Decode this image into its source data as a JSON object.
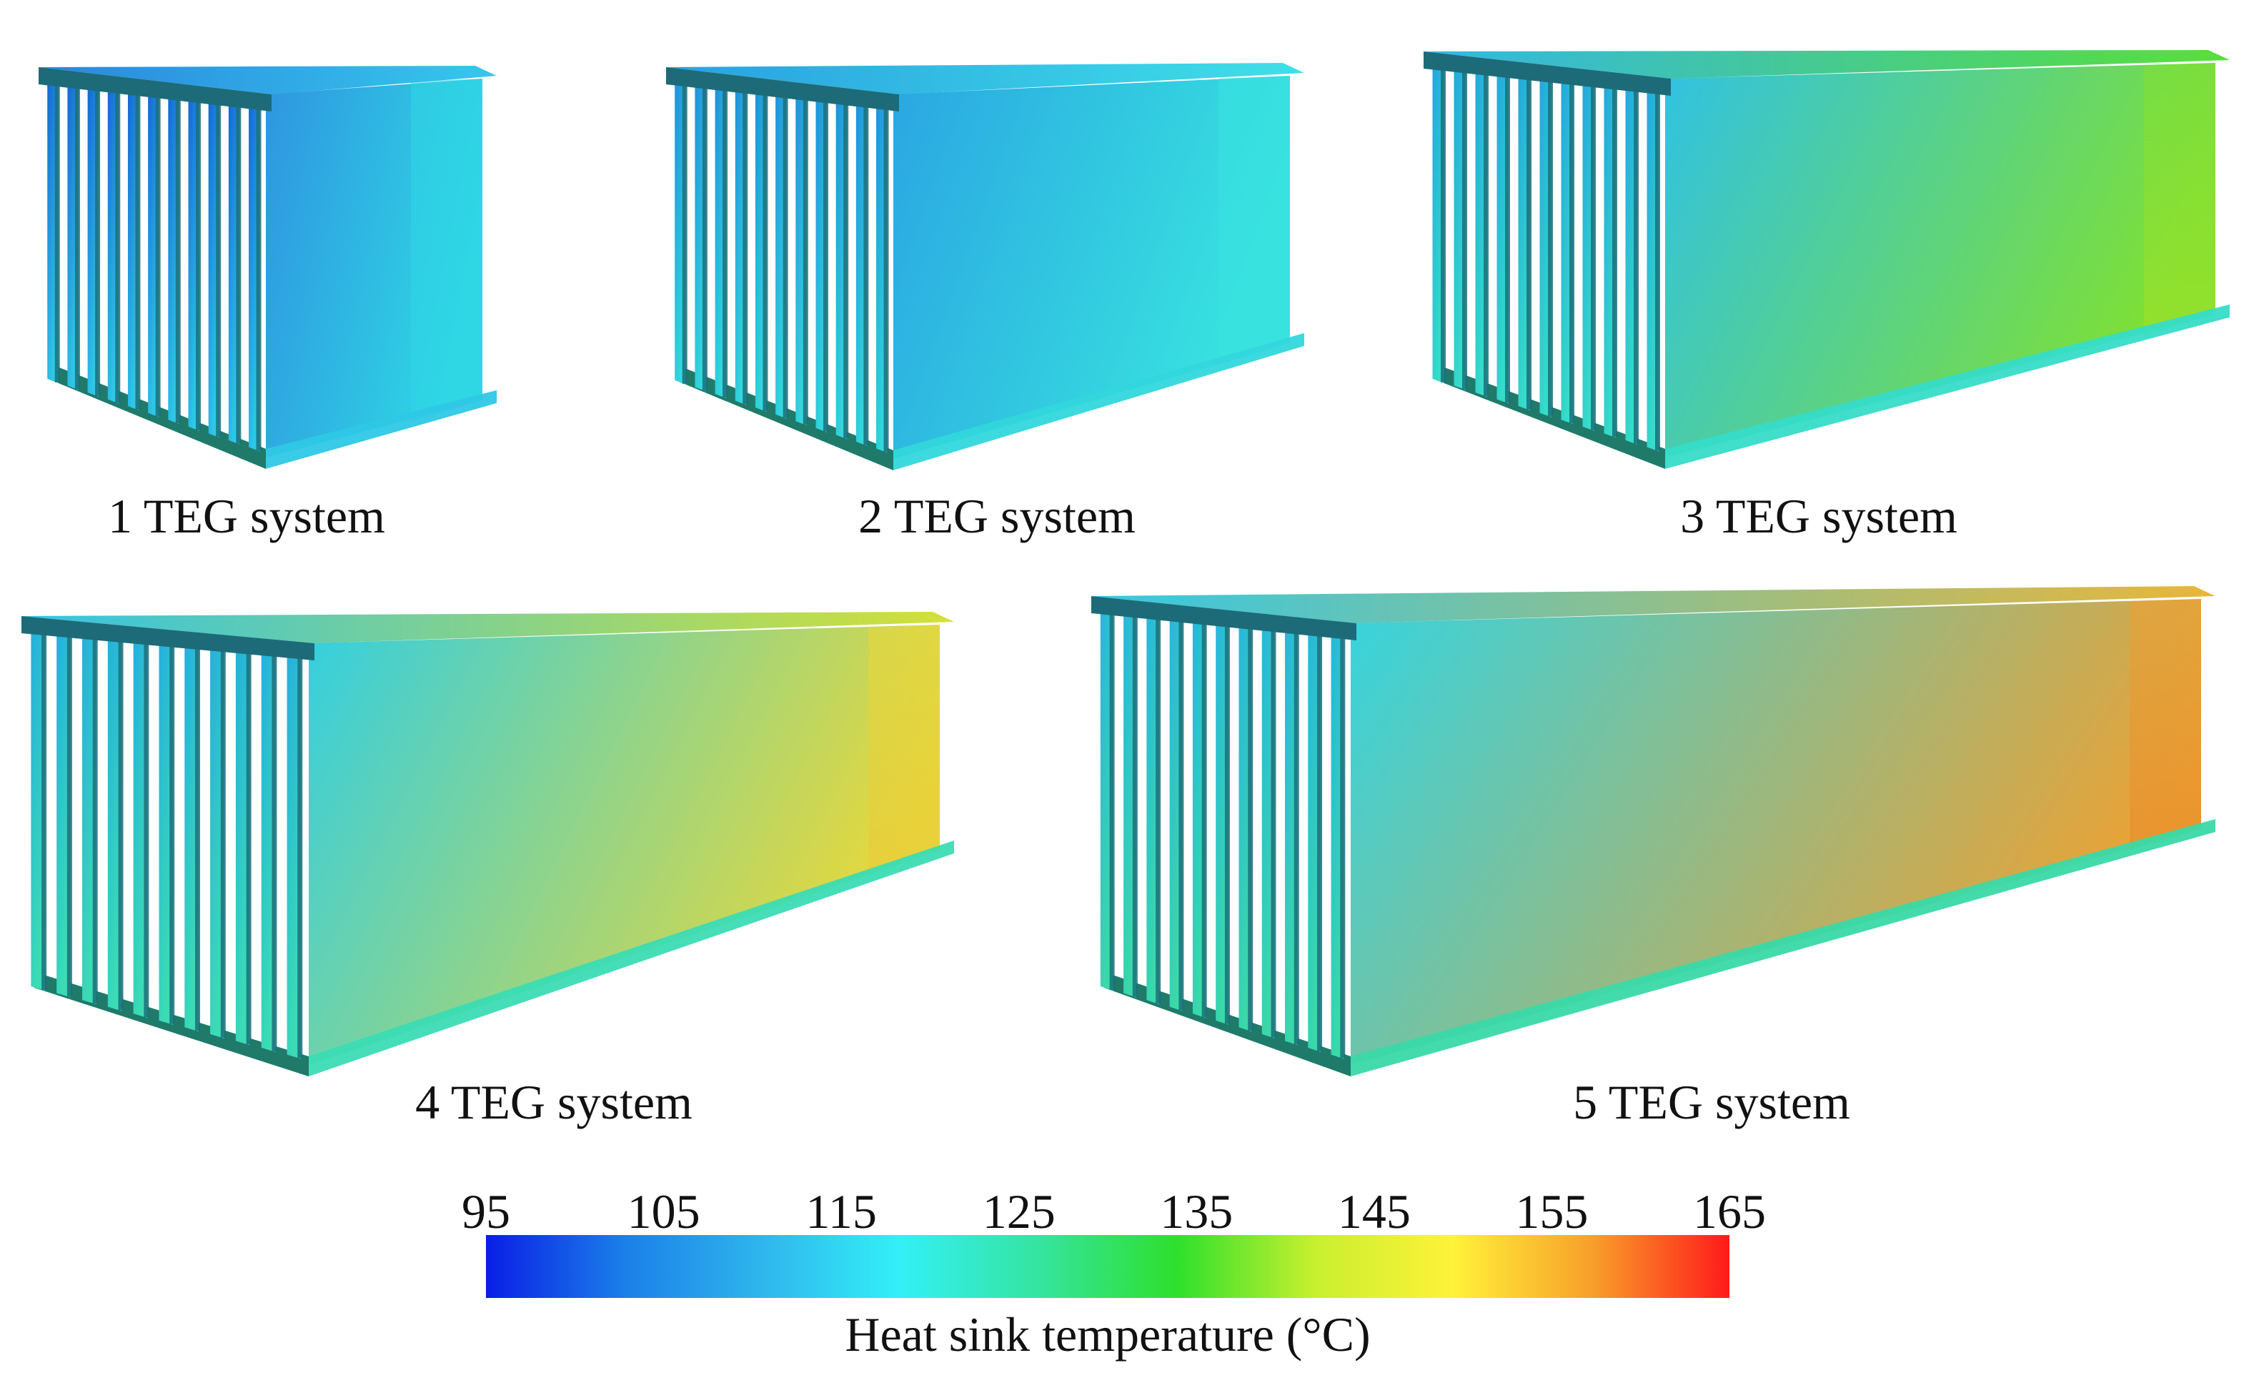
{
  "figure": {
    "systems": [
      {
        "label": "1 TEG system",
        "fin_count": 11,
        "front": [
          "#1565d6",
          "#2ec8e6"
        ],
        "side": [
          "#2f95e0",
          "#2fd6e4"
        ],
        "top": [
          "#2a86de",
          "#36c7ec"
        ],
        "hot_end": "#2fd6e4"
      },
      {
        "label": "2 TEG system",
        "fin_count": 11,
        "front": [
          "#1e8fdd",
          "#32d7dc"
        ],
        "side": [
          "#2aa6e2",
          "#38e3df"
        ],
        "top": [
          "#2aa0e0",
          "#3fe0e8"
        ],
        "hot_end": "#38e3df"
      },
      {
        "label": "3 TEG system",
        "fin_count": 11,
        "front": [
          "#22a6de",
          "#36dcc8"
        ],
        "side": [
          "#30c2e3",
          "#7fe033"
        ],
        "top": [
          "#33b6e6",
          "#59df3a"
        ],
        "hot_end": "#a4e028"
      },
      {
        "label": "4 TEG system",
        "fin_count": 11,
        "front": [
          "#24aedf",
          "#3bdcb4"
        ],
        "side": [
          "#33cfe0",
          "#e8d83a"
        ],
        "top": [
          "#34c3e3",
          "#d4e036"
        ],
        "hot_end": "#e9c93a"
      },
      {
        "label": "5 TEG system",
        "fin_count": 11,
        "front": [
          "#27b5df",
          "#3ad9a8"
        ],
        "side": [
          "#35d4df",
          "#eba234"
        ],
        "top": [
          "#36c8e2",
          "#e9b63a"
        ],
        "hot_end": "#e8892a"
      }
    ]
  },
  "colorbar": {
    "ticks": [
      "95",
      "105",
      "115",
      "125",
      "135",
      "145",
      "155",
      "165"
    ],
    "title": "Heat sink temperature (°C)",
    "stops": [
      "#0a1ee6",
      "#1b7fe8",
      "#2fb6ec",
      "#33f0f6",
      "#35e4a0",
      "#2ee02c",
      "#c8f02e",
      "#fff23a",
      "#f8a02a",
      "#ff1a1a"
    ]
  }
}
